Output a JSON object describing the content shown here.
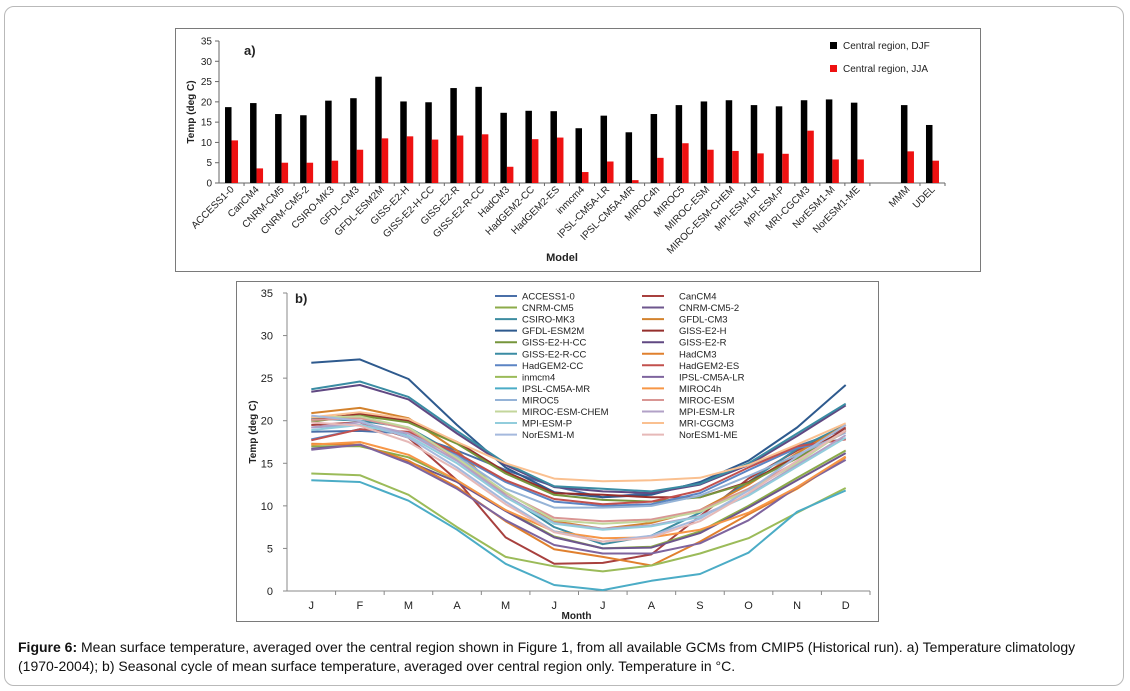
{
  "caption": {
    "label": "Figure 6:",
    "text": " Mean surface temperature, averaged over the central region shown in Figure 1, from all available GCMs from CMIP5 (Historical run). a) Temperature climatology (1970-2004); b) Seasonal cycle of mean surface temperature, averaged over central region only. Temperature in °C."
  },
  "colors": {
    "djf": "#000000",
    "jja": "#ee1111"
  },
  "chart_data": [
    {
      "type": "bar",
      "panel_label": "a)",
      "title": "",
      "xlabel": "Model",
      "ylabel": "Temp (deg C)",
      "ylim": [
        0,
        35
      ],
      "yticks": [
        0,
        5,
        10,
        15,
        20,
        25,
        30,
        35
      ],
      "legend_position": "top-right",
      "categories": [
        "ACCESS1-0",
        "CanCM4",
        "CNRM-CM5",
        "CNRM-CM5-2",
        "CSIRO-MK3",
        "GFDL-CM3",
        "GFDL-ESM2M",
        "GISS-E2-H",
        "GISS-E2-H-CC",
        "GISS-E2-R",
        "GISS-E2-R-CC",
        "HadCM3",
        "HadGEM2-CC",
        "HadGEM2-ES",
        "inmcm4",
        "IPSL-CM5A-LR",
        "IPSL-CM5A-MR",
        "MIROC4h",
        "MIROC5",
        "MIROC-ESM",
        "MIROC-ESM-CHEM",
        "MPI-ESM-LR",
        "MPI-ESM-P",
        "MRI-CGCM3",
        "NorESM1-M",
        "NorESM1-ME",
        "MMM",
        "UDEL"
      ],
      "series": [
        {
          "name": "Central region, DJF",
          "values": [
            18.7,
            19.7,
            17.0,
            16.7,
            20.3,
            20.9,
            26.2,
            20.1,
            19.9,
            23.4,
            23.7,
            17.3,
            17.8,
            17.7,
            13.5,
            16.6,
            12.5,
            17.0,
            19.2,
            20.1,
            20.4,
            19.2,
            18.9,
            20.4,
            20.6,
            19.8,
            19.2,
            14.3
          ]
        },
        {
          "name": "Central region, JJA",
          "values": [
            10.5,
            3.6,
            5.0,
            5.0,
            5.5,
            8.2,
            11.0,
            11.5,
            10.7,
            11.7,
            12.0,
            4.0,
            10.8,
            11.2,
            2.7,
            5.3,
            0.7,
            6.2,
            9.8,
            8.2,
            7.9,
            7.3,
            7.2,
            12.9,
            5.8,
            5.8,
            7.8,
            5.5
          ]
        }
      ],
      "gap_before_index": 26
    },
    {
      "type": "line",
      "panel_label": "b)",
      "title": "",
      "xlabel": "Month",
      "ylabel": "Temp (deg C)",
      "ylim": [
        0,
        35
      ],
      "yticks": [
        0,
        5,
        10,
        15,
        20,
        25,
        30,
        35
      ],
      "legend_position": "top-center",
      "categories": [
        "J",
        "F",
        "M",
        "A",
        "M",
        "J",
        "J",
        "A",
        "S",
        "O",
        "N",
        "D"
      ],
      "series": [
        {
          "name": "ACCESS1-0",
          "color": "#4a6fa8",
          "values": [
            18.7,
            18.8,
            18.5,
            16.5,
            14.2,
            12.3,
            11.0,
            11.5,
            12.7,
            14.8,
            17.0,
            19.0
          ]
        },
        {
          "name": "CanCM4",
          "color": "#a8403e",
          "values": [
            19.5,
            19.8,
            18.0,
            13.0,
            6.3,
            3.2,
            3.3,
            4.3,
            8.8,
            13.2,
            16.5,
            19.2
          ]
        },
        {
          "name": "CNRM-CM5",
          "color": "#8cab4a",
          "values": [
            17.0,
            17.0,
            15.7,
            13.0,
            9.5,
            6.4,
            5.0,
            5.2,
            7.0,
            10.0,
            13.3,
            16.5
          ]
        },
        {
          "name": "CNRM-CM5-2",
          "color": "#6d568d",
          "values": [
            16.7,
            17.2,
            15.2,
            12.8,
            9.4,
            6.3,
            5.0,
            5.1,
            6.8,
            9.8,
            13.0,
            16.2
          ]
        },
        {
          "name": "CSIRO-MK3",
          "color": "#3d8ca0",
          "values": [
            20.3,
            20.0,
            19.2,
            16.0,
            11.2,
            7.5,
            5.5,
            6.5,
            9.2,
            12.8,
            16.7,
            19.5
          ]
        },
        {
          "name": "GFDL-CM3",
          "color": "#d3822d",
          "values": [
            20.9,
            21.5,
            20.3,
            16.5,
            11.0,
            8.2,
            7.3,
            8.0,
            9.5,
            12.5,
            16.2,
            19.5
          ]
        },
        {
          "name": "GFDL-ESM2M",
          "color": "#2e5a8e",
          "values": [
            26.8,
            27.2,
            24.9,
            19.5,
            14.5,
            11.6,
            11.0,
            11.3,
            12.8,
            15.3,
            19.2,
            24.2
          ]
        },
        {
          "name": "GISS-E2-H",
          "color": "#952f2c",
          "values": [
            20.1,
            20.8,
            20.0,
            17.5,
            14.0,
            11.5,
            11.3,
            11.0,
            11.0,
            12.8,
            15.8,
            19.0
          ]
        },
        {
          "name": "GISS-E2-H-CC",
          "color": "#76953b",
          "values": [
            19.9,
            20.6,
            19.8,
            17.3,
            13.8,
            11.3,
            10.7,
            10.5,
            11.0,
            12.7,
            15.6,
            18.8
          ]
        },
        {
          "name": "GISS-E2-R",
          "color": "#604882",
          "values": [
            23.4,
            24.2,
            22.5,
            18.5,
            14.8,
            12.2,
            11.7,
            11.5,
            12.5,
            14.8,
            18.2,
            21.8
          ]
        },
        {
          "name": "GISS-E2-R-CC",
          "color": "#3a8ca3",
          "values": [
            23.7,
            24.6,
            22.8,
            18.8,
            15.0,
            12.3,
            12.0,
            11.7,
            12.6,
            15.0,
            18.5,
            22.0
          ]
        },
        {
          "name": "HadCM3",
          "color": "#e0802e",
          "values": [
            17.3,
            17.2,
            15.3,
            12.2,
            8.2,
            4.9,
            4.0,
            3.0,
            5.8,
            9.0,
            12.0,
            15.7
          ]
        },
        {
          "name": "HadGEM2-CC",
          "color": "#5b84c4",
          "values": [
            17.8,
            19.0,
            18.5,
            16.0,
            12.8,
            10.5,
            10.0,
            10.2,
            11.5,
            14.2,
            16.8,
            17.9
          ]
        },
        {
          "name": "HadGEM2-ES",
          "color": "#c2504d",
          "values": [
            17.7,
            19.0,
            18.7,
            16.2,
            13.0,
            10.8,
            10.2,
            10.5,
            11.8,
            14.5,
            17.0,
            17.8
          ]
        },
        {
          "name": "inmcm4",
          "color": "#9bbb59",
          "values": [
            13.8,
            13.6,
            11.3,
            7.5,
            4.0,
            2.9,
            2.3,
            3.0,
            4.4,
            6.2,
            9.2,
            12.1
          ]
        },
        {
          "name": "IPSL-CM5A-LR",
          "color": "#7e649e",
          "values": [
            16.6,
            17.2,
            15.0,
            12.0,
            8.3,
            5.4,
            4.4,
            4.4,
            5.6,
            8.3,
            12.2,
            15.4
          ]
        },
        {
          "name": "IPSL-CM5A-MR",
          "color": "#4bacc6",
          "values": [
            13.0,
            12.8,
            10.6,
            7.2,
            3.2,
            0.7,
            0.1,
            1.2,
            2.0,
            4.5,
            9.3,
            11.8
          ]
        },
        {
          "name": "MIROC4h",
          "color": "#f79646",
          "values": [
            17.2,
            17.5,
            16.0,
            13.0,
            9.5,
            7.0,
            6.2,
            6.3,
            7.2,
            9.2,
            12.2,
            15.8
          ]
        },
        {
          "name": "MIROC5",
          "color": "#95b3d7",
          "values": [
            19.2,
            19.5,
            18.5,
            15.8,
            12.0,
            9.8,
            9.8,
            10.0,
            11.2,
            13.5,
            16.0,
            18.6
          ]
        },
        {
          "name": "MIROC-ESM",
          "color": "#d99694",
          "values": [
            20.1,
            20.3,
            19.0,
            15.5,
            11.5,
            8.6,
            8.2,
            8.4,
            9.5,
            12.0,
            15.2,
            18.8
          ]
        },
        {
          "name": "MIROC-ESM-CHEM",
          "color": "#c3d69b",
          "values": [
            20.4,
            20.5,
            19.2,
            15.6,
            11.6,
            8.3,
            7.9,
            8.2,
            9.3,
            11.8,
            15.0,
            18.9
          ]
        },
        {
          "name": "MPI-ESM-LR",
          "color": "#b2a1c7",
          "values": [
            19.2,
            19.8,
            18.5,
            15.3,
            11.2,
            8.0,
            7.3,
            7.7,
            8.8,
            11.3,
            14.8,
            18.3
          ]
        },
        {
          "name": "MPI-ESM-P",
          "color": "#92cddc",
          "values": [
            18.9,
            19.5,
            18.2,
            15.0,
            11.0,
            7.9,
            7.2,
            7.6,
            8.7,
            11.2,
            14.6,
            18.0
          ]
        },
        {
          "name": "MRI-CGCM3",
          "color": "#fac090",
          "values": [
            20.4,
            21.0,
            20.2,
            17.5,
            15.0,
            13.2,
            12.9,
            13.0,
            13.3,
            14.8,
            17.2,
            19.7
          ]
        },
        {
          "name": "NorESM1-M",
          "color": "#a5b9dd",
          "values": [
            20.6,
            20.0,
            18.0,
            14.5,
            10.5,
            7.0,
            5.8,
            6.5,
            8.5,
            11.8,
            15.8,
            19.5
          ]
        },
        {
          "name": "NorESM1-ME",
          "color": "#e6b9b8",
          "values": [
            19.8,
            19.4,
            17.5,
            14.2,
            10.2,
            6.9,
            5.8,
            6.3,
            8.2,
            11.5,
            15.3,
            18.9
          ]
        }
      ]
    }
  ]
}
